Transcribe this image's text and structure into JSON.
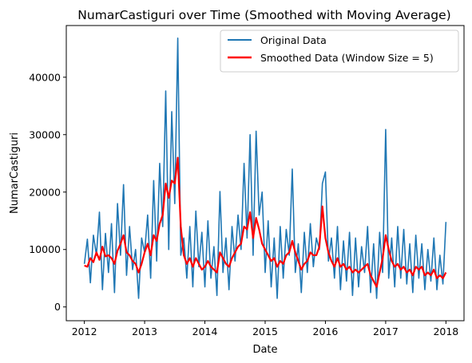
{
  "chart_data": {
    "type": "line",
    "title": "NumarCastiguri over Time (Smoothed with Moving Average)",
    "xlabel": "Date",
    "ylabel": "NumarCastiguri",
    "xlim": [
      2011.7,
      2018.3
    ],
    "ylim": [
      -2400,
      49000
    ],
    "x_ticks": [
      2012,
      2013,
      2014,
      2015,
      2016,
      2017,
      2018
    ],
    "x_tick_labels": [
      "2012",
      "2013",
      "2014",
      "2015",
      "2016",
      "2017",
      "2018"
    ],
    "y_ticks": [
      0,
      10000,
      20000,
      30000,
      40000
    ],
    "y_tick_labels": [
      "0",
      "10000",
      "20000",
      "30000",
      "40000"
    ],
    "grid": false,
    "legend_position": "upper right",
    "colors": {
      "original": "#1f77b4",
      "smoothed": "#ff0000"
    },
    "series": [
      {
        "name": "Original Data",
        "x": [
          2012.0,
          2012.05,
          2012.1,
          2012.15,
          2012.2,
          2012.25,
          2012.3,
          2012.35,
          2012.4,
          2012.45,
          2012.5,
          2012.55,
          2012.6,
          2012.65,
          2012.7,
          2012.75,
          2012.8,
          2012.85,
          2012.9,
          2012.95,
          2013.0,
          2013.05,
          2013.1,
          2013.15,
          2013.2,
          2013.25,
          2013.3,
          2013.35,
          2013.4,
          2013.45,
          2013.5,
          2013.55,
          2013.6,
          2013.65,
          2013.7,
          2013.75,
          2013.8,
          2013.85,
          2013.9,
          2013.95,
          2014.0,
          2014.05,
          2014.1,
          2014.15,
          2014.2,
          2014.25,
          2014.3,
          2014.35,
          2014.4,
          2014.45,
          2014.5,
          2014.55,
          2014.6,
          2014.65,
          2014.7,
          2014.75,
          2014.8,
          2014.85,
          2014.9,
          2014.95,
          2015.0,
          2015.05,
          2015.1,
          2015.15,
          2015.2,
          2015.25,
          2015.3,
          2015.35,
          2015.4,
          2015.45,
          2015.5,
          2015.55,
          2015.6,
          2015.65,
          2015.7,
          2015.75,
          2015.8,
          2015.85,
          2015.9,
          2015.95,
          2016.0,
          2016.05,
          2016.1,
          2016.15,
          2016.2,
          2016.25,
          2016.3,
          2016.35,
          2016.4,
          2016.45,
          2016.5,
          2016.55,
          2016.6,
          2016.65,
          2016.7,
          2016.75,
          2016.8,
          2016.85,
          2016.9,
          2016.95,
          2017.0,
          2017.05,
          2017.1,
          2017.15,
          2017.2,
          2017.25,
          2017.3,
          2017.35,
          2017.4,
          2017.45,
          2017.5,
          2017.55,
          2017.6,
          2017.65,
          2017.7,
          2017.75,
          2017.8,
          2017.85,
          2017.9,
          2017.95,
          2018.0
        ],
        "values": [
          7500,
          11800,
          4200,
          12500,
          9000,
          16500,
          3000,
          12800,
          6000,
          14500,
          2500,
          18000,
          9000,
          21300,
          5500,
          14000,
          6500,
          10000,
          1500,
          12000,
          9500,
          16000,
          5000,
          22000,
          8000,
          25000,
          14000,
          37600,
          10000,
          34000,
          18000,
          46800,
          9000,
          12000,
          5000,
          14000,
          3500,
          16700,
          7000,
          13000,
          3500,
          15000,
          5000,
          10500,
          2000,
          20100,
          6000,
          12000,
          3000,
          14000,
          8000,
          16000,
          10000,
          25000,
          12000,
          30000,
          9000,
          30600,
          16000,
          20000,
          6000,
          15000,
          3500,
          12000,
          1500,
          14000,
          5000,
          13500,
          9000,
          24000,
          6000,
          11000,
          2500,
          13000,
          6000,
          14500,
          7000,
          12000,
          10000,
          21500,
          23500,
          8000,
          12000,
          5000,
          14000,
          3000,
          11500,
          4500,
          13000,
          2000,
          12000,
          3500,
          10500,
          6000,
          14000,
          2500,
          11000,
          1500,
          13000,
          6000,
          30900,
          5000,
          12000,
          3500,
          14000,
          5000,
          13500,
          4000,
          11000,
          2500,
          12500,
          5000,
          11000,
          3000,
          10000,
          4500,
          12000,
          3000,
          9000,
          4000,
          14800
        ]
      },
      {
        "name": "Smoothed Data (Window Size = 5)",
        "x": [
          2012.0,
          2012.05,
          2012.1,
          2012.15,
          2012.2,
          2012.25,
          2012.3,
          2012.35,
          2012.4,
          2012.45,
          2012.5,
          2012.55,
          2012.6,
          2012.65,
          2012.7,
          2012.75,
          2012.8,
          2012.85,
          2012.9,
          2012.95,
          2013.0,
          2013.05,
          2013.1,
          2013.15,
          2013.2,
          2013.25,
          2013.3,
          2013.35,
          2013.4,
          2013.45,
          2013.5,
          2013.55,
          2013.6,
          2013.65,
          2013.7,
          2013.75,
          2013.8,
          2013.85,
          2013.9,
          2013.95,
          2014.0,
          2014.05,
          2014.1,
          2014.15,
          2014.2,
          2014.25,
          2014.3,
          2014.35,
          2014.4,
          2014.45,
          2014.5,
          2014.55,
          2014.6,
          2014.65,
          2014.7,
          2014.75,
          2014.8,
          2014.85,
          2014.9,
          2014.95,
          2015.0,
          2015.05,
          2015.1,
          2015.15,
          2015.2,
          2015.25,
          2015.3,
          2015.35,
          2015.4,
          2015.45,
          2015.5,
          2015.55,
          2015.6,
          2015.65,
          2015.7,
          2015.75,
          2015.8,
          2015.85,
          2015.9,
          2015.95,
          2016.0,
          2016.05,
          2016.1,
          2016.15,
          2016.2,
          2016.25,
          2016.3,
          2016.35,
          2016.4,
          2016.45,
          2016.5,
          2016.55,
          2016.6,
          2016.65,
          2016.7,
          2016.75,
          2016.8,
          2016.85,
          2016.9,
          2016.95,
          2017.0,
          2017.05,
          2017.1,
          2017.15,
          2017.2,
          2017.25,
          2017.3,
          2017.35,
          2017.4,
          2017.45,
          2017.5,
          2017.55,
          2017.6,
          2017.65,
          2017.7,
          2017.75,
          2017.8,
          2017.85,
          2017.9,
          2017.95,
          2018.0
        ],
        "values": [
          7200,
          7000,
          8500,
          7800,
          9500,
          8200,
          10500,
          8800,
          9000,
          8500,
          7500,
          9800,
          11000,
          12500,
          9500,
          9000,
          8000,
          7500,
          6000,
          7500,
          9500,
          11000,
          9000,
          12500,
          11500,
          14500,
          16000,
          21500,
          19000,
          22000,
          21500,
          26000,
          14000,
          9000,
          7500,
          8500,
          7000,
          8500,
          7500,
          6500,
          7000,
          8000,
          7000,
          6500,
          6000,
          9500,
          8500,
          7500,
          7000,
          8500,
          9500,
          10500,
          11000,
          14000,
          13500,
          16500,
          12000,
          15500,
          13500,
          11000,
          10000,
          9000,
          8000,
          8500,
          7000,
          8000,
          7500,
          9000,
          9500,
          11500,
          9500,
          8000,
          6500,
          7500,
          8000,
          9500,
          9000,
          9000,
          10500,
          17500,
          12000,
          9500,
          8000,
          7000,
          8500,
          7000,
          7500,
          6500,
          7000,
          6000,
          6500,
          6000,
          6500,
          7000,
          7500,
          5500,
          4500,
          3500,
          6000,
          8500,
          12500,
          10000,
          8000,
          7000,
          7500,
          6500,
          7000,
          6000,
          6500,
          5500,
          7000,
          6500,
          7000,
          5500,
          6000,
          5500,
          6500,
          5000,
          5500,
          5000,
          6000
        ]
      }
    ]
  }
}
